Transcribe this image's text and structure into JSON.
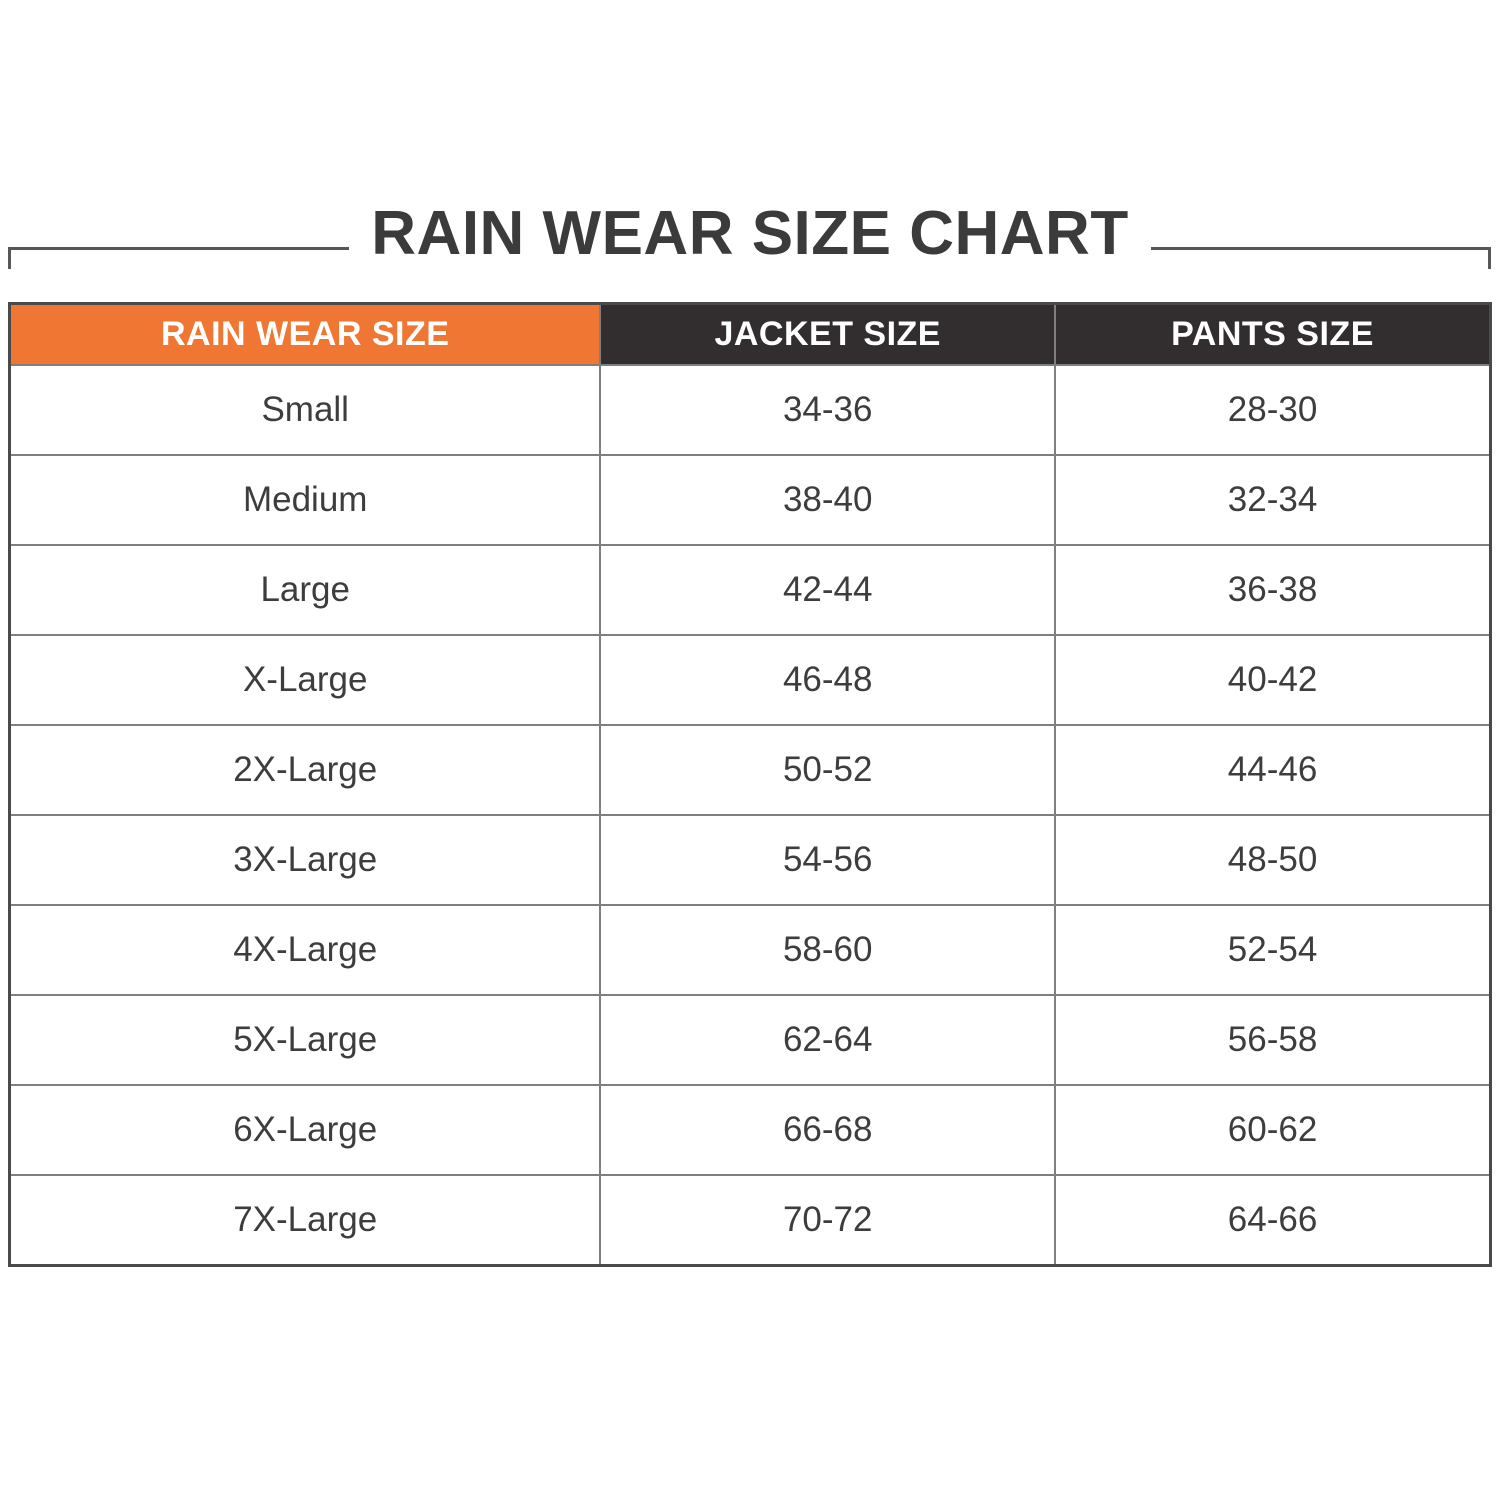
{
  "title": "RAIN WEAR SIZE CHART",
  "colors": {
    "accent_orange": "#ef7733",
    "header_dark": "#322e2f",
    "grid_line": "#7f7f7f",
    "outer_border": "#4a4a4a",
    "text_dark": "#3b3b3b"
  },
  "table": {
    "row_keys": [
      "size",
      "jacket",
      "pants"
    ],
    "columns": [
      "RAIN WEAR SIZE",
      "JACKET SIZE",
      "PANTS SIZE"
    ],
    "rows": [
      {
        "size": "Small",
        "jacket": "34-36",
        "pants": "28-30"
      },
      {
        "size": "Medium",
        "jacket": "38-40",
        "pants": "32-34"
      },
      {
        "size": "Large",
        "jacket": "42-44",
        "pants": "36-38"
      },
      {
        "size": "X-Large",
        "jacket": "46-48",
        "pants": "40-42"
      },
      {
        "size": "2X-Large",
        "jacket": "50-52",
        "pants": "44-46"
      },
      {
        "size": "3X-Large",
        "jacket": "54-56",
        "pants": "48-50"
      },
      {
        "size": "4X-Large",
        "jacket": "58-60",
        "pants": "52-54"
      },
      {
        "size": "5X-Large",
        "jacket": "62-64",
        "pants": "56-58"
      },
      {
        "size": "6X-Large",
        "jacket": "66-68",
        "pants": "60-62"
      },
      {
        "size": "7X-Large",
        "jacket": "70-72",
        "pants": "64-66"
      }
    ]
  },
  "chart_data": {
    "type": "table",
    "title": "RAIN WEAR SIZE CHART",
    "columns": [
      "RAIN WEAR SIZE",
      "JACKET SIZE",
      "PANTS SIZE"
    ],
    "rows": [
      [
        "Small",
        "34-36",
        "28-30"
      ],
      [
        "Medium",
        "38-40",
        "32-34"
      ],
      [
        "Large",
        "42-44",
        "36-38"
      ],
      [
        "X-Large",
        "46-48",
        "40-42"
      ],
      [
        "2X-Large",
        "50-52",
        "44-46"
      ],
      [
        "3X-Large",
        "54-56",
        "48-50"
      ],
      [
        "4X-Large",
        "58-60",
        "52-54"
      ],
      [
        "5X-Large",
        "62-64",
        "56-58"
      ],
      [
        "6X-Large",
        "66-68",
        "60-62"
      ],
      [
        "7X-Large",
        "70-72",
        "64-66"
      ]
    ]
  }
}
